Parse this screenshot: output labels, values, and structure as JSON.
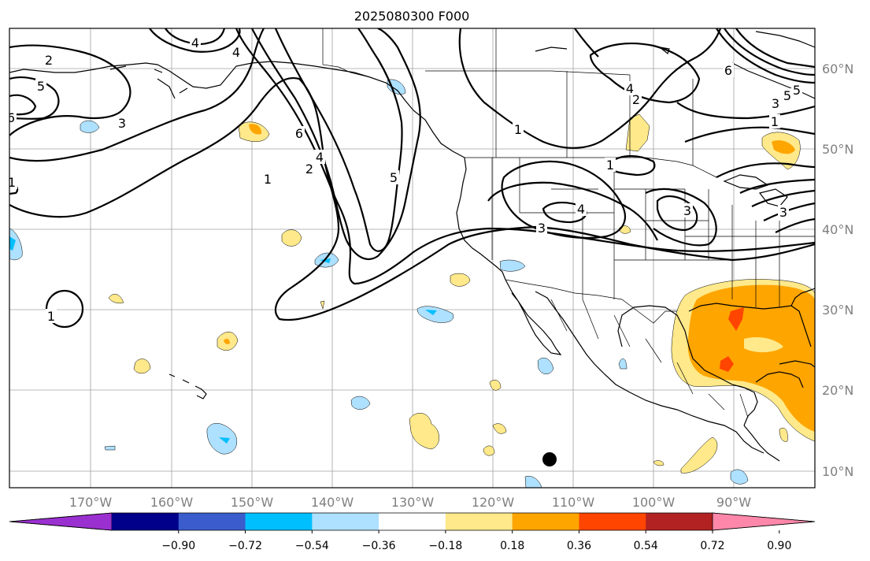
{
  "title": "2025080300 F000",
  "axes": {
    "lon_labels": [
      "170°W",
      "160°W",
      "150°W",
      "140°W",
      "130°W",
      "120°W",
      "110°W",
      "100°W",
      "90°W"
    ],
    "lat_labels": [
      "60°N",
      "50°N",
      "40°N",
      "30°N",
      "20°N",
      "10°N"
    ]
  },
  "colorbar": {
    "ticks": [
      "−0.90",
      "−0.72",
      "−0.54",
      "−0.36",
      "−0.18",
      "0.18",
      "0.36",
      "0.54",
      "0.72",
      "0.90"
    ],
    "colors": [
      "#9b30d0",
      "#00008b",
      "#3a5ccc",
      "#00bfff",
      "#aee0ff",
      "#ffffff",
      "#ffe98a",
      "#ffa500",
      "#ff4500",
      "#b22222",
      "#ff88aa"
    ]
  },
  "contour_labels": [
    "2",
    "5",
    "6",
    "3",
    "1",
    "4",
    "1",
    "2",
    "6",
    "4",
    "5",
    "1",
    "4",
    "1",
    "3",
    "4",
    "3",
    "1",
    "2",
    "5",
    "3",
    "1",
    "6",
    "5",
    "3",
    "4"
  ],
  "colors": {
    "yellow": "#ffe98a",
    "orange": "#ffa500",
    "red": "#ff4500",
    "light_blue": "#aee0ff",
    "blue": "#00bfff"
  }
}
